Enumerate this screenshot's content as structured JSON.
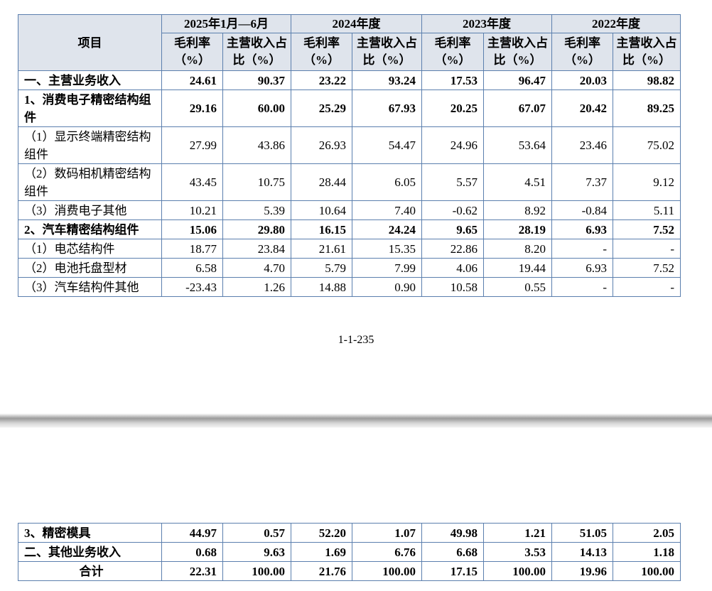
{
  "header": {
    "item": "项目",
    "periods": [
      "2025年1月—6月",
      "2024年度",
      "2023年度",
      "2022年度"
    ],
    "sub": [
      "毛利率（%）",
      "主营收入占比（%）"
    ]
  },
  "rows": [
    {
      "label": "一、主营业务收入",
      "bold": true,
      "values": [
        "24.61",
        "90.37",
        "23.22",
        "93.24",
        "17.53",
        "96.47",
        "20.03",
        "98.82"
      ]
    },
    {
      "label": "1、消费电子精密结构组件",
      "bold": true,
      "values": [
        "29.16",
        "60.00",
        "25.29",
        "67.93",
        "20.25",
        "67.07",
        "20.42",
        "89.25"
      ]
    },
    {
      "label": "（1）显示终端精密结构组件",
      "bold": false,
      "values": [
        "27.99",
        "43.86",
        "26.93",
        "54.47",
        "24.96",
        "53.64",
        "23.46",
        "75.02"
      ]
    },
    {
      "label": "（2）数码相机精密结构组件",
      "bold": false,
      "values": [
        "43.45",
        "10.75",
        "28.44",
        "6.05",
        "5.57",
        "4.51",
        "7.37",
        "9.12"
      ]
    },
    {
      "label": "（3）消费电子其他",
      "bold": false,
      "values": [
        "10.21",
        "5.39",
        "10.64",
        "7.40",
        "-0.62",
        "8.92",
        "-0.84",
        "5.11"
      ]
    },
    {
      "label": "2、汽车精密结构组件",
      "bold": true,
      "values": [
        "15.06",
        "29.80",
        "16.15",
        "24.24",
        "9.65",
        "28.19",
        "6.93",
        "7.52"
      ]
    },
    {
      "label": "（1）电芯结构件",
      "bold": false,
      "values": [
        "18.77",
        "23.84",
        "21.61",
        "15.35",
        "22.86",
        "8.20",
        "-",
        "-"
      ]
    },
    {
      "label": "（2）电池托盘型材",
      "bold": false,
      "values": [
        "6.58",
        "4.70",
        "5.79",
        "7.99",
        "4.06",
        "19.44",
        "6.93",
        "7.52"
      ]
    },
    {
      "label": "（3）汽车结构件其他",
      "bold": false,
      "values": [
        "-23.43",
        "1.26",
        "14.88",
        "0.90",
        "10.58",
        "0.55",
        "-",
        "-"
      ]
    }
  ],
  "page_number": "1-1-235",
  "rows2": [
    {
      "label": "3、精密模具",
      "bold": true,
      "values": [
        "44.97",
        "0.57",
        "52.20",
        "1.07",
        "49.98",
        "1.21",
        "51.05",
        "2.05"
      ]
    },
    {
      "label": "二、其他业务收入",
      "bold": true,
      "values": [
        "0.68",
        "9.63",
        "1.69",
        "6.76",
        "6.68",
        "3.53",
        "14.13",
        "1.18"
      ]
    },
    {
      "label": "合计",
      "bold": true,
      "center": true,
      "values": [
        "22.31",
        "100.00",
        "21.76",
        "100.00",
        "17.15",
        "100.00",
        "19.96",
        "100.00"
      ]
    }
  ]
}
